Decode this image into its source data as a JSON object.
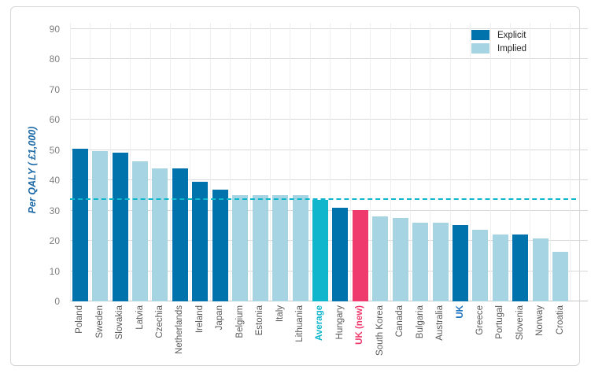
{
  "chart_data": {
    "type": "bar",
    "title": "",
    "xlabel": "",
    "ylabel": "Per QALY ( £1,000)",
    "ylim": [
      0,
      90
    ],
    "yticks": [
      0,
      10,
      20,
      30,
      40,
      50,
      60,
      70,
      80,
      90
    ],
    "grid": "horizontal major gridlines on, faint vertical category separators",
    "legend_position": "top-right",
    "legend": [
      {
        "label": "Explicit",
        "type": "explicit"
      },
      {
        "label": "Implied",
        "type": "implied"
      }
    ],
    "average_line": {
      "value": 33.6,
      "style": "dashed"
    },
    "categories": [
      "Poland",
      "Sweden",
      "Slovakia",
      "Latvia",
      "Czechia",
      "Netherlands",
      "Ireland",
      "Japan",
      "Belgium",
      "Estonia",
      "Italy",
      "Lithuania",
      "Average",
      "Hungary",
      "UK (new)",
      "South Korea",
      "Canada",
      "Bulgaria",
      "Australia",
      "UK",
      "Greece",
      "Portugal",
      "Slovenia",
      "Norway",
      "Croatia"
    ],
    "values": [
      50.5,
      49.6,
      49.2,
      46.2,
      44.0,
      43.9,
      39.6,
      36.8,
      35.1,
      35.1,
      35.1,
      35.1,
      33.6,
      31.0,
      30.1,
      28.2,
      27.6,
      26.1,
      26.1,
      25.1,
      23.7,
      22.1,
      22.0,
      20.8,
      16.5
    ],
    "bar_types": [
      "explicit",
      "implied",
      "explicit",
      "implied",
      "implied",
      "explicit",
      "explicit",
      "explicit",
      "implied",
      "implied",
      "implied",
      "implied",
      "average",
      "explicit",
      "uk-new",
      "implied",
      "implied",
      "implied",
      "implied",
      "explicit",
      "implied",
      "implied",
      "explicit",
      "implied",
      "implied"
    ],
    "label_styles": [
      "normal",
      "normal",
      "normal",
      "normal",
      "normal",
      "normal",
      "normal",
      "normal",
      "normal",
      "normal",
      "normal",
      "normal",
      "teal-bold",
      "normal",
      "pink-bold",
      "normal",
      "normal",
      "normal",
      "normal",
      "blue-bold",
      "normal",
      "normal",
      "normal",
      "normal",
      "normal"
    ]
  },
  "colors": {
    "explicit": "#0072ac",
    "implied": "#a6d4e2",
    "average": "#10b6cc",
    "uk_new": "#ee3a6d",
    "average_line": "#10b6cc",
    "axis_title": "#1e6ba8",
    "tick_label": "#7f7f7f",
    "category_label": "#595959",
    "uk_label": "#1e73be",
    "gridline": "#d9d9d9",
    "frame_border": "#d6d6d6"
  }
}
